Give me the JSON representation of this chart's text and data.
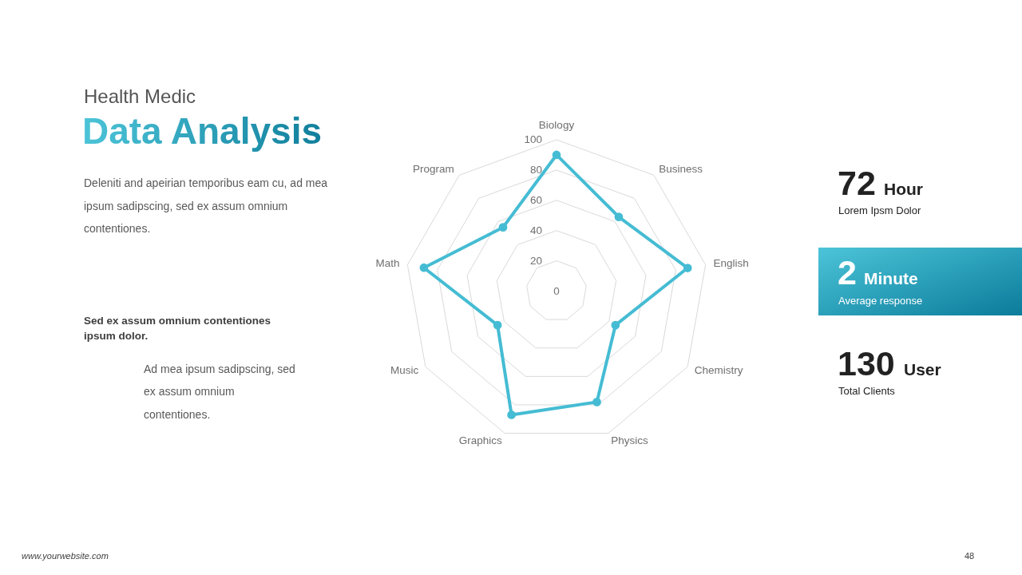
{
  "chart_data": {
    "type": "radar",
    "subtitle": "Health Medic",
    "title": "Data Analysis",
    "categories": [
      "Biology",
      "Business",
      "English",
      "Chemistry",
      "Physics",
      "Graphics",
      "Music",
      "Math",
      "Program"
    ],
    "series": [
      {
        "color": "#45bcd3",
        "values": [
          90,
          64,
          88,
          45,
          78,
          87,
          45,
          89,
          55
        ]
      }
    ],
    "ylim": [
      0,
      100
    ],
    "yticks": [
      0,
      20,
      40,
      60,
      80,
      100
    ],
    "grid": true,
    "marker": "circle",
    "line_style": "solid",
    "annotations": [
      "Deleniti and apeirian temporibus eam cu, ad mea\nipsum sadipscing, sed ex assum omnium\ncontentiones.",
      "Sed ex assum omnium contentiones\nipsum dolor.",
      "Ad mea ipsum sadipscing, sed\nex assum omnium\ncontentiones.",
      "72",
      "Hour",
      "Lorem Ipsm Dolor",
      "2",
      "Minute",
      "Average response",
      "130",
      "User",
      "Total Clients",
      "www.yourwebsite.com",
      "48"
    ]
  }
}
